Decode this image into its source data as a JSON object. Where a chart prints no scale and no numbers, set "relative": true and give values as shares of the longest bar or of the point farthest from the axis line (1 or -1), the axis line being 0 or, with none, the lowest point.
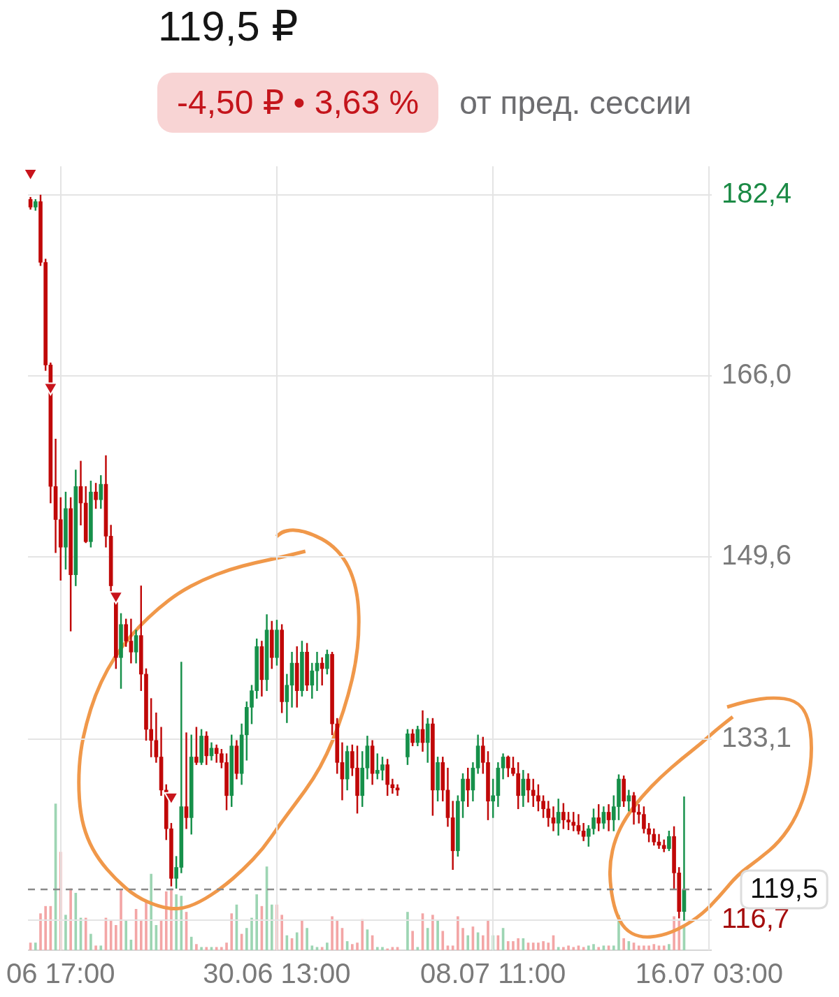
{
  "chart_data": [
    {
      "type": "candlestick",
      "title": "119,5 ₽",
      "annotations": [
        "-4,50 ₽ • 3,63 %",
        "от пред. сессии"
      ],
      "categories": [
        null,
        null,
        null,
        null,
        null,
        null,
        "06 17:00",
        null,
        null,
        null,
        null,
        null,
        null,
        null,
        null,
        null,
        null,
        null,
        null,
        null,
        null,
        null,
        null,
        null,
        null,
        null,
        null,
        null,
        null,
        null,
        null,
        null,
        null,
        null,
        null,
        null,
        null,
        null,
        null,
        null,
        null,
        null,
        null,
        null,
        null,
        null,
        null,
        null,
        null,
        "30.06 13:00",
        null,
        null,
        null,
        null,
        null,
        null,
        null,
        null,
        null,
        null,
        null,
        null,
        null,
        null,
        null,
        null,
        null,
        null,
        null,
        null,
        null,
        null,
        null,
        null,
        null,
        null,
        null,
        null,
        null,
        null,
        null,
        null,
        null,
        null,
        null,
        null,
        null,
        null,
        null,
        null,
        null,
        null,
        "08.07 11:00",
        null,
        null,
        null,
        null,
        null,
        null,
        null,
        null,
        null,
        null,
        null,
        null,
        null,
        null,
        null,
        null,
        null,
        null,
        null,
        null,
        null,
        null,
        null,
        null,
        null,
        null,
        null,
        null,
        null,
        null,
        null,
        null,
        null,
        null,
        null,
        null,
        null,
        null,
        null,
        null,
        null,
        null,
        "16.07 03:00"
      ],
      "ohlc": [
        [
          182.0,
          182.2,
          181.1,
          181.3
        ],
        [
          181.3,
          182.0,
          181.0,
          181.8
        ],
        [
          181.8,
          182.4,
          176.0,
          176.3
        ],
        [
          176.3,
          176.6,
          166.5,
          167.0
        ],
        [
          167.0,
          167.2,
          154.5,
          156.0
        ],
        [
          156.0,
          160.3,
          150.0,
          153.0
        ],
        [
          153.0,
          155.0,
          147.5,
          150.5
        ],
        [
          150.5,
          155.5,
          148.5,
          154.0
        ],
        [
          154.0,
          155.0,
          142.9,
          148.0
        ],
        [
          148.0,
          157.5,
          147.0,
          156.0
        ],
        [
          156.0,
          158.3,
          152.5,
          154.5
        ],
        [
          154.5,
          156.0,
          150.9,
          151.0
        ],
        [
          151.0,
          156.5,
          150.5,
          155.5
        ],
        [
          155.5,
          156.3,
          154.0,
          154.8
        ],
        [
          154.8,
          157.0,
          154.0,
          156.2
        ],
        [
          156.2,
          158.8,
          150.5,
          151.5
        ],
        [
          151.5,
          152.5,
          146.5,
          147.0
        ],
        [
          145.5,
          145.6,
          139.5,
          140.5
        ],
        [
          140.5,
          144.5,
          137.7,
          143.5
        ],
        [
          143.5,
          144.0,
          141.5,
          142.0
        ],
        [
          142.0,
          144.0,
          140.0,
          141.0
        ],
        [
          141.0,
          143.0,
          140.0,
          142.5
        ],
        [
          142.5,
          147.0,
          137.5,
          139.0
        ],
        [
          139.0,
          139.5,
          133.0,
          134.0
        ],
        [
          134.0,
          136.8,
          131.5,
          133.0
        ],
        [
          133.0,
          135.5,
          131.0,
          131.5
        ],
        [
          131.5,
          134.2,
          128.0,
          128.5
        ],
        [
          128.5,
          129.0,
          124.0,
          125.0
        ],
        [
          125.0,
          125.5,
          119.8,
          120.5
        ],
        [
          120.5,
          122.5,
          119.6,
          121.5
        ],
        [
          121.5,
          140.1,
          121.0,
          127.0
        ],
        [
          127.0,
          133.7,
          125.0,
          126.0
        ],
        [
          126.0,
          133.5,
          124.5,
          131.5
        ],
        [
          131.5,
          134.2,
          130.8,
          131.0
        ],
        [
          131.0,
          134.0,
          130.8,
          133.4
        ],
        [
          133.4,
          133.8,
          130.8,
          131.6
        ],
        [
          131.6,
          132.8,
          131.2,
          132.3
        ],
        [
          132.3,
          132.6,
          131.0,
          131.8
        ],
        [
          131.8,
          132.2,
          130.5,
          131.0
        ],
        [
          131.0,
          131.8,
          126.7,
          128.0
        ],
        [
          128.0,
          133.5,
          127.0,
          132.5
        ],
        [
          132.5,
          133.0,
          129.5,
          130.0
        ],
        [
          130.0,
          134.5,
          129.0,
          133.5
        ],
        [
          133.5,
          136.5,
          131.2,
          136.0
        ],
        [
          136.0,
          138.0,
          134.5,
          137.5
        ],
        [
          137.5,
          142.2,
          136.8,
          141.5
        ],
        [
          141.5,
          142.0,
          137.0,
          138.5
        ],
        [
          138.5,
          144.4,
          137.5,
          143.0
        ],
        [
          143.0,
          143.8,
          139.5,
          140.5
        ],
        [
          140.5,
          143.9,
          139.8,
          143.0
        ],
        [
          143.0,
          143.5,
          135.5,
          136.5
        ],
        [
          136.5,
          139.0,
          134.6,
          138.0
        ],
        [
          138.0,
          141.0,
          136.0,
          140.0
        ],
        [
          140.0,
          141.5,
          136.0,
          137.5
        ],
        [
          137.5,
          142.0,
          137.0,
          141.0
        ],
        [
          141.0,
          141.8,
          137.5,
          138.0
        ],
        [
          138.0,
          140.0,
          136.8,
          139.3
        ],
        [
          139.3,
          141.0,
          137.5,
          140.0
        ],
        [
          140.0,
          140.5,
          138.0,
          139.5
        ],
        [
          139.5,
          141.2,
          139.0,
          140.8
        ],
        [
          140.8,
          141.0,
          133.5,
          134.5
        ],
        [
          134.5,
          135.0,
          130.0,
          131.0
        ],
        [
          131.0,
          132.8,
          127.6,
          129.5
        ],
        [
          129.5,
          132.5,
          128.5,
          132.0
        ],
        [
          132.0,
          132.6,
          129.8,
          130.5
        ],
        [
          130.5,
          132.5,
          126.4,
          128.0
        ],
        [
          128.0,
          132.0,
          127.0,
          130.5
        ],
        [
          130.5,
          133.4,
          129.5,
          132.5
        ],
        [
          132.5,
          133.0,
          129.0,
          130.0
        ],
        [
          130.0,
          131.8,
          129.5,
          130.3
        ],
        [
          130.3,
          131.5,
          129.4,
          130.8
        ],
        [
          130.8,
          131.3,
          128.0,
          129.0
        ],
        [
          129.0,
          129.5,
          128.2,
          128.7
        ],
        [
          128.7,
          129.0,
          128.0,
          128.5
        ],
        null,
        [
          131.5,
          134.0,
          130.8,
          133.6
        ],
        [
          133.6,
          134.0,
          132.5,
          132.8
        ],
        [
          132.8,
          134.3,
          132.5,
          134.0
        ],
        [
          134.0,
          135.7,
          132.0,
          132.8
        ],
        [
          132.8,
          135.0,
          131.0,
          134.5
        ],
        [
          134.5,
          135.0,
          126.2,
          128.5
        ],
        [
          128.5,
          131.5,
          127.5,
          131.0
        ],
        [
          131.0,
          131.5,
          127.5,
          128.5
        ],
        [
          128.5,
          130.5,
          125.2,
          126.0
        ],
        [
          126.0,
          127.5,
          121.3,
          123.0
        ],
        [
          123.0,
          128.0,
          122.5,
          127.5
        ],
        [
          127.5,
          130.0,
          126.0,
          129.5
        ],
        [
          129.5,
          130.5,
          127.0,
          128.5
        ],
        [
          128.5,
          131.0,
          127.5,
          130.5
        ],
        [
          130.5,
          133.5,
          130.0,
          132.5
        ],
        [
          132.5,
          133.3,
          130.0,
          131.0
        ],
        [
          131.0,
          132.0,
          125.8,
          127.5
        ],
        [
          127.5,
          129.5,
          126.0,
          128.0
        ],
        [
          128.0,
          131.0,
          127.0,
          130.5
        ],
        [
          130.5,
          131.8,
          129.5,
          131.5
        ],
        [
          131.5,
          131.6,
          129.7,
          130.5
        ],
        [
          130.5,
          131.5,
          129.8,
          130.0
        ],
        [
          130.0,
          131.0,
          126.8,
          128.0
        ],
        [
          128.0,
          130.3,
          127.0,
          129.5
        ],
        [
          129.5,
          130.0,
          127.4,
          128.5
        ],
        [
          128.5,
          129.5,
          127.0,
          128.0
        ],
        [
          128.0,
          129.0,
          126.6,
          127.5
        ],
        [
          127.5,
          128.0,
          126.0,
          126.8
        ],
        [
          126.8,
          127.5,
          125.2,
          126.0
        ],
        [
          126.0,
          127.0,
          124.8,
          125.5
        ],
        [
          125.5,
          127.7,
          124.4,
          126.5
        ],
        [
          126.5,
          127.3,
          125.0,
          125.8
        ],
        [
          125.8,
          126.5,
          124.9,
          125.6
        ],
        [
          125.6,
          126.5,
          124.8,
          125.3
        ],
        [
          125.3,
          126.3,
          124.5,
          124.8
        ],
        [
          124.8,
          125.5,
          123.9,
          124.3
        ],
        [
          124.3,
          125.3,
          123.4,
          125.0
        ],
        [
          125.0,
          126.8,
          124.5,
          126.0
        ],
        [
          126.0,
          127.2,
          124.8,
          125.5
        ],
        [
          125.5,
          127.0,
          125.0,
          126.5
        ],
        [
          126.5,
          127.2,
          124.8,
          125.8
        ],
        [
          125.8,
          128.0,
          124.8,
          127.0
        ],
        [
          127.0,
          129.9,
          125.8,
          129.5
        ],
        [
          129.5,
          129.8,
          127.0,
          127.5
        ],
        [
          127.5,
          128.5,
          126.6,
          128.0
        ],
        [
          128.0,
          128.3,
          125.4,
          126.5
        ],
        [
          126.5,
          127.2,
          125.5,
          126.3
        ],
        [
          126.3,
          127.0,
          124.6,
          125.0
        ],
        [
          125.0,
          125.5,
          123.8,
          124.5
        ],
        [
          124.5,
          125.0,
          123.5,
          123.8
        ],
        [
          123.8,
          124.5,
          123.2,
          123.5
        ],
        [
          123.5,
          124.0,
          122.9,
          123.2
        ],
        [
          123.2,
          124.8,
          123.0,
          124.3
        ],
        [
          124.3,
          125.2,
          119.5,
          121.0
        ],
        [
          121.0,
          121.5,
          116.9,
          117.5
        ],
        [
          117.5,
          127.9,
          116.7,
          119.5
        ],
        null,
        null,
        null,
        null,
        null
      ],
      "colors": [
        "#c00808",
        "#16904a",
        "#c00808",
        "#c00808",
        "#c00808",
        "#c00808",
        "#c00808",
        "#16904a",
        "#c00808",
        "#16904a",
        "#c00808",
        "#c00808",
        "#16904a",
        "#c00808",
        "#16904a",
        "#c00808",
        "#c00808",
        "#c00808",
        "#16904a",
        "#c00808",
        "#c00808",
        "#16904a",
        "#c00808",
        "#c00808",
        "#c00808",
        "#c00808",
        "#c00808",
        "#c00808",
        "#c00808",
        "#16904a",
        "#16904a",
        "#c00808",
        "#16904a",
        "#c00808",
        "#16904a",
        "#c00808",
        "#16904a",
        "#c00808",
        "#c00808",
        "#c00808",
        "#16904a",
        "#c00808",
        "#16904a",
        "#16904a",
        "#16904a",
        "#16904a",
        "#c00808",
        "#16904a",
        "#c00808",
        "#16904a",
        "#c00808",
        "#16904a",
        "#16904a",
        "#c00808",
        "#16904a",
        "#c00808",
        "#16904a",
        "#16904a",
        "#c00808",
        "#16904a",
        "#c00808",
        "#c00808",
        "#c00808",
        "#16904a",
        "#c00808",
        "#c00808",
        "#16904a",
        "#16904a",
        "#c00808",
        "#16904a",
        "#16904a",
        "#c00808",
        "#c00808",
        "#c00808",
        null,
        "#16904a",
        "#c00808",
        "#16904a",
        "#c00808",
        "#16904a",
        "#c00808",
        "#16904a",
        "#c00808",
        "#c00808",
        "#c00808",
        "#16904a",
        "#16904a",
        "#c00808",
        "#16904a",
        "#16904a",
        "#c00808",
        "#c00808",
        "#16904a",
        "#16904a",
        "#16904a",
        "#c00808",
        "#c00808",
        "#c00808",
        "#16904a",
        "#c00808",
        "#c00808",
        "#c00808",
        "#c00808",
        "#c00808",
        "#c00808",
        "#16904a",
        "#c00808",
        "#c00808",
        "#c00808",
        "#c00808",
        "#c00808",
        "#16904a",
        "#16904a",
        "#c00808",
        "#16904a",
        "#c00808",
        "#16904a",
        "#16904a",
        "#c00808",
        "#16904a",
        "#c00808",
        "#c00808",
        "#c00808",
        "#c00808",
        "#c00808",
        "#c00808",
        "#c00808",
        "#16904a",
        "#c00808",
        "#c00808",
        "#16904a",
        null,
        null,
        null,
        null,
        null
      ],
      "series": [
        {
          "type": "scatter",
          "marker": "triangle",
          "color": "#c8141c",
          "values": [
            184.4,
            null,
            null,
            null,
            165.0,
            null,
            null,
            null,
            null,
            null,
            null,
            null,
            null,
            null,
            null,
            null,
            null,
            146.1,
            null,
            null,
            null,
            null,
            null,
            null,
            null,
            null,
            null,
            null,
            127.9,
            null,
            null,
            null,
            null,
            null,
            null,
            null,
            null,
            null,
            null,
            null,
            null,
            null,
            null,
            null,
            null,
            null,
            null,
            null,
            null,
            null,
            null,
            null,
            null,
            null,
            null,
            null,
            null,
            null,
            null,
            null,
            null,
            null,
            null,
            null,
            null,
            null,
            null,
            null,
            null,
            null,
            null,
            null,
            null,
            null,
            null,
            null,
            null,
            null,
            null,
            null,
            null,
            null,
            null,
            null,
            null,
            null,
            null,
            null,
            null,
            null,
            null,
            null,
            null,
            null,
            null,
            null,
            null,
            null,
            null,
            null,
            null,
            null,
            null,
            null,
            null,
            null,
            null,
            null,
            null,
            null,
            null,
            null,
            null,
            null,
            null,
            null,
            null,
            null,
            null,
            null,
            null,
            null,
            null,
            null,
            null,
            null,
            null,
            null,
            null,
            null,
            null,
            null,
            null,
            null,
            null,
            null
          ]
        }
      ],
      "ylim": [
        114.0,
        185.0
      ],
      "yticks": [
        {
          "value": 182.4,
          "label": "182,4"
        },
        {
          "value": 166.0,
          "label": "166,0"
        },
        {
          "value": 149.6,
          "label": "149,6"
        },
        {
          "value": 133.1,
          "label": "133,1"
        },
        {
          "value": 116.7,
          "label": "116,7"
        }
      ],
      "ref_lines": [
        {
          "axis": "y",
          "value": 119.5,
          "label": "119,5",
          "line_style": "dashed",
          "color": "#8a8a8a"
        }
      ],
      "grid": true
    },
    {
      "type": "bar",
      "relative": true,
      "categories": [
        null,
        null,
        null,
        null,
        null,
        null,
        null,
        null,
        null,
        null,
        null,
        null,
        null,
        null,
        null,
        null,
        null,
        null,
        null,
        null,
        null,
        null,
        null,
        null,
        null,
        null,
        null,
        null,
        null,
        null,
        null,
        null,
        null,
        null,
        null,
        null,
        null,
        null,
        null,
        null,
        null,
        null,
        null,
        null,
        null,
        null,
        null,
        null,
        null,
        null,
        null,
        null,
        null,
        null,
        null,
        null,
        null,
        null,
        null,
        null,
        null,
        null,
        null,
        null,
        null,
        null,
        null,
        null,
        null,
        null,
        null,
        null,
        null,
        null,
        null,
        null,
        null,
        null,
        null,
        null,
        null,
        null,
        null,
        null,
        null,
        null,
        null,
        null,
        null,
        null,
        null,
        null,
        null,
        null,
        null,
        null,
        null,
        null,
        null,
        null,
        null,
        null,
        null,
        null,
        null,
        null,
        null,
        null,
        null,
        null,
        null,
        null,
        null,
        null,
        null,
        null,
        null,
        null,
        null,
        null,
        null,
        null,
        null,
        null,
        null,
        null,
        null,
        null,
        null,
        null,
        null,
        null,
        null,
        null,
        null,
        null
      ],
      "values": [
        0.05,
        0.05,
        0.25,
        0.3,
        0.3,
        1,
        0.67,
        0.24,
        0.42,
        0.39,
        0.22,
        0.22,
        0.11,
        0.03,
        0.03,
        0.22,
        0.2,
        0.17,
        0.41,
        0.2,
        0.07,
        0.28,
        0.2,
        0.33,
        0.52,
        0.17,
        0.2,
        0.4,
        0.42,
        0.38,
        0.37,
        0.26,
        0.09,
        0.04,
        0.02,
        0.02,
        0.02,
        0.02,
        0.02,
        0.05,
        0.25,
        0.31,
        0.11,
        0.15,
        0.22,
        0.38,
        0.3,
        0.57,
        0.31,
        0.31,
        0.24,
        0.1,
        0.08,
        0.12,
        0.2,
        0.15,
        0.03,
        0.02,
        0.02,
        0.05,
        0.23,
        0.2,
        0.15,
        0.06,
        0.04,
        0.05,
        0.21,
        0.14,
        0.1,
        0.02,
        0.02,
        0.01,
        0.02,
        0.02,
        null,
        0.26,
        0.13,
        0.02,
        0.25,
        0.15,
        0.24,
        0.2,
        0.13,
        0.03,
        0.03,
        0.23,
        0.15,
        0.1,
        0.16,
        0.12,
        0.1,
        0.2,
        0.1,
        0.1,
        0.15,
        0.06,
        0.06,
        0.08,
        0.08,
        0.05,
        0.05,
        0.05,
        0.06,
        0.05,
        0.1,
        0.02,
        0.02,
        0.03,
        0.02,
        0.03,
        0.02,
        0.03,
        0.04,
        0.02,
        0.03,
        0.03,
        0.03,
        0.24,
        0.08,
        0.06,
        0.05,
        0.03,
        0.03,
        0.03,
        0.04,
        0.03,
        0.03,
        0.04,
        0.23,
        0.2,
        0.16,
        null,
        null,
        null,
        null,
        null
      ],
      "colors": [
        "#f3a6a6",
        "#9dd5b3",
        "#f3a6a6",
        "#f3a6a6",
        "#f3a6a6",
        "#9dd5b3",
        "#f3a6a6",
        "#9dd5b3",
        "#f3a6a6",
        "#9dd5b3",
        "#9dd5b3",
        "#f3a6a6",
        "#9dd5b3",
        "#f3a6a6",
        "#9dd5b3",
        "#f3a6a6",
        "#f3a6a6",
        "#f3a6a6",
        "#f3a6a6",
        "#9dd5b3",
        "#9dd5b3",
        "#f3a6a6",
        "#f3a6a6",
        "#f3a6a6",
        "#9dd5b3",
        "#9dd5b3",
        "#f3a6a6",
        "#f3a6a6",
        "#f3a6a6",
        "#9dd5b3",
        "#9dd5b3",
        "#f3a6a6",
        "#9dd5b3",
        "#f3a6a6",
        "#9dd5b3",
        "#f3a6a6",
        "#9dd5b3",
        "#f3a6a6",
        "#f3a6a6",
        "#f3a6a6",
        "#f3a6a6",
        "#9dd5b3",
        "#f3a6a6",
        "#9dd5b3",
        "#9dd5b3",
        "#9dd5b3",
        "#f3a6a6",
        "#9dd5b3",
        "#9dd5b3",
        "#f3a6a6",
        "#f3a6a6",
        "#9dd5b3",
        "#f3a6a6",
        "#9dd5b3",
        "#f3a6a6",
        "#9dd5b3",
        "#9dd5b3",
        "#9dd5b3",
        "#f3a6a6",
        "#9dd5b3",
        "#f3a6a6",
        "#f3a6a6",
        "#f3a6a6",
        "#9dd5b3",
        "#f3a6a6",
        "#f3a6a6",
        "#f3a6a6",
        "#9dd5b3",
        "#f3a6a6",
        "#9dd5b3",
        "#9dd5b3",
        "#f3a6a6",
        "#f3a6a6",
        "#f3a6a6",
        null,
        "#9dd5b3",
        "#f3a6a6",
        "#9dd5b3",
        "#f3a6a6",
        "#9dd5b3",
        "#f3a6a6",
        "#9dd5b3",
        "#f3a6a6",
        "#f3a6a6",
        "#f3a6a6",
        "#f3a6a6",
        "#f3a6a6",
        "#9dd5b3",
        "#f3a6a6",
        "#9dd5b3",
        "#f3a6a6",
        "#f3a6a6",
        "#9dd5b3",
        "#f3a6a6",
        "#9dd5b3",
        "#f3a6a6",
        "#f3a6a6",
        "#f3a6a6",
        "#9dd5b3",
        "#f3a6a6",
        "#f3a6a6",
        "#f3a6a6",
        "#f3a6a6",
        "#f3a6a6",
        "#f3a6a6",
        "#9dd5b3",
        "#f3a6a6",
        "#f3a6a6",
        "#f3a6a6",
        "#f3a6a6",
        "#f3a6a6",
        "#9dd5b3",
        "#9dd5b3",
        "#f3a6a6",
        "#9dd5b3",
        "#f3a6a6",
        "#9dd5b3",
        "#9dd5b3",
        "#f3a6a6",
        "#9dd5b3",
        "#f3a6a6",
        "#f3a6a6",
        "#f3a6a6",
        "#f3a6a6",
        "#f3a6a6",
        "#f3a6a6",
        "#f3a6a6",
        "#9dd5b3",
        "#f3a6a6",
        "#f3a6a6",
        "#9dd5b3",
        null,
        null,
        null,
        null,
        null
      ]
    }
  ]
}
